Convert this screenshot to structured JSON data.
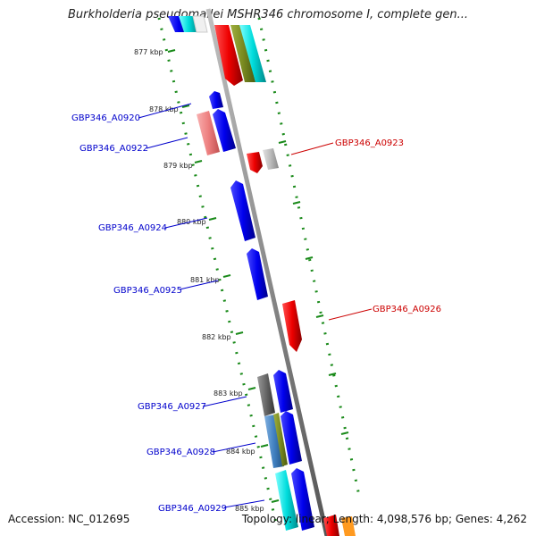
{
  "title": "Burkholderia pseudomallei MSHR346 chromosome I, complete gen...",
  "footer": {
    "accession": "Accession: NC_012695",
    "summary": "Topology: linear; Length: 4,098,576 bp; Genes: 4,262"
  },
  "ticks": [
    "877 kbp",
    "878 kbp",
    "879 kbp",
    "880 kbp",
    "881 kbp",
    "882 kbp",
    "883 kbp",
    "884 kbp",
    "885 kbp"
  ],
  "genes_left": [
    {
      "name": "GBP346_A0920",
      "color": "#0000cc"
    },
    {
      "name": "GBP346_A0922",
      "color": "#0000cc"
    },
    {
      "name": "GBP346_A0924",
      "color": "#0000cc"
    },
    {
      "name": "GBP346_A0925",
      "color": "#0000cc"
    },
    {
      "name": "GBP346_A0927",
      "color": "#0000cc"
    },
    {
      "name": "GBP346_A0928",
      "color": "#0000cc"
    },
    {
      "name": "GBP346_A0929",
      "color": "#0000cc"
    }
  ],
  "genes_right": [
    {
      "name": "GBP346_A0923",
      "color": "#cc0000"
    },
    {
      "name": "GBP346_A0926",
      "color": "#cc0000"
    }
  ],
  "colors": {
    "backbone": "#8a8a8a",
    "tick": "#228b22",
    "forward": "#0000ee",
    "reverse": "#ee0000"
  }
}
